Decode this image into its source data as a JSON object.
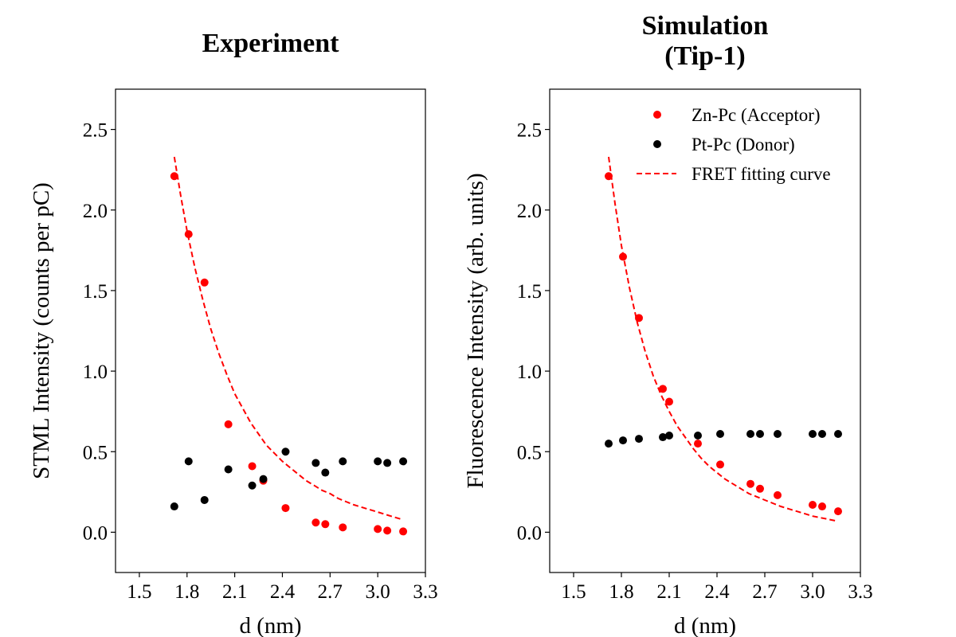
{
  "chart_data": [
    {
      "type": "scatter",
      "title_lines": [
        "Experiment"
      ],
      "xlabel": "d (nm)",
      "ylabel": "STML Intensity (counts per pC)",
      "xlim": [
        1.35,
        3.3
      ],
      "ylim": [
        -0.25,
        2.75
      ],
      "xticks": [
        "1.5",
        "1.8",
        "2.1",
        "2.4",
        "2.7",
        "3.0",
        "3.3"
      ],
      "yticks": [
        "0.0",
        "0.5",
        "1.0",
        "1.5",
        "2.0",
        "2.5"
      ],
      "grid": false,
      "legend": null,
      "series": [
        {
          "kind": "points",
          "color": "#ff0000",
          "x": [
            1.72,
            1.81,
            1.91,
            2.06,
            2.21,
            2.28,
            2.42,
            2.61,
            2.67,
            2.78,
            3.0,
            3.06,
            3.16
          ],
          "y": [
            2.21,
            1.85,
            1.55,
            0.67,
            0.41,
            0.32,
            0.15,
            0.06,
            0.05,
            0.03,
            0.02,
            0.01,
            0.005
          ]
        },
        {
          "kind": "points",
          "color": "#000000",
          "x": [
            1.72,
            1.81,
            1.91,
            2.06,
            2.21,
            2.28,
            2.42,
            2.61,
            2.67,
            2.78,
            3.0,
            3.06,
            3.16
          ],
          "y": [
            0.16,
            0.44,
            0.2,
            0.39,
            0.29,
            0.33,
            0.5,
            0.43,
            0.37,
            0.44,
            0.44,
            0.43,
            0.44
          ]
        },
        {
          "kind": "line",
          "dashed": true,
          "color": "#ff0000",
          "x": [
            1.72,
            1.76,
            1.8,
            1.85,
            1.9,
            1.95,
            2.0,
            2.05,
            2.1,
            2.15,
            2.2,
            2.25,
            2.3,
            2.35,
            2.4,
            2.45,
            2.5,
            2.55,
            2.6,
            2.65,
            2.7,
            2.75,
            2.8,
            2.85,
            2.9,
            2.95,
            3.0,
            3.05,
            3.1,
            3.15
          ],
          "y": [
            2.33,
            2.09,
            1.87,
            1.64,
            1.44,
            1.26,
            1.11,
            0.98,
            0.86,
            0.77,
            0.68,
            0.61,
            0.54,
            0.49,
            0.44,
            0.4,
            0.36,
            0.32,
            0.29,
            0.26,
            0.24,
            0.21,
            0.19,
            0.17,
            0.155,
            0.14,
            0.125,
            0.11,
            0.095,
            0.08
          ]
        }
      ]
    },
    {
      "type": "scatter",
      "title_lines": [
        "Simulation",
        "(Tip-1)"
      ],
      "xlabel": "d (nm)",
      "ylabel": "Fluorescence Intensity (arb. units)",
      "xlim": [
        1.35,
        3.3
      ],
      "ylim": [
        -0.25,
        2.75
      ],
      "xticks": [
        "1.5",
        "1.8",
        "2.1",
        "2.4",
        "2.7",
        "3.0",
        "3.3"
      ],
      "yticks": [
        "0.0",
        "0.5",
        "1.0",
        "1.5",
        "2.0",
        "2.5"
      ],
      "grid": false,
      "legend": "top-right",
      "series": [
        {
          "name": "Zn-Pc (Acceptor)",
          "kind": "points",
          "color": "#ff0000",
          "x": [
            1.72,
            1.81,
            1.91,
            2.06,
            2.1,
            2.28,
            2.42,
            2.61,
            2.67,
            2.78,
            3.0,
            3.06,
            3.16
          ],
          "y": [
            2.21,
            1.71,
            1.33,
            0.89,
            0.81,
            0.55,
            0.42,
            0.3,
            0.27,
            0.23,
            0.17,
            0.16,
            0.13
          ]
        },
        {
          "name": "Pt-Pc (Donor)",
          "kind": "points",
          "color": "#000000",
          "x": [
            1.72,
            1.81,
            1.91,
            2.06,
            2.1,
            2.28,
            2.42,
            2.61,
            2.67,
            2.78,
            3.0,
            3.06,
            3.16
          ],
          "y": [
            0.55,
            0.57,
            0.58,
            0.59,
            0.6,
            0.6,
            0.61,
            0.61,
            0.61,
            0.61,
            0.61,
            0.61,
            0.61
          ]
        },
        {
          "name": "FRET fitting curve",
          "kind": "line",
          "dashed": true,
          "color": "#ff0000",
          "x": [
            1.72,
            1.76,
            1.8,
            1.85,
            1.9,
            1.95,
            2.0,
            2.05,
            2.1,
            2.15,
            2.2,
            2.25,
            2.3,
            2.35,
            2.4,
            2.45,
            2.5,
            2.55,
            2.6,
            2.65,
            2.7,
            2.75,
            2.8,
            2.85,
            2.9,
            2.95,
            3.0,
            3.05,
            3.1,
            3.15
          ],
          "y": [
            2.33,
            2.04,
            1.78,
            1.52,
            1.3,
            1.12,
            0.97,
            0.85,
            0.75,
            0.66,
            0.59,
            0.52,
            0.46,
            0.41,
            0.37,
            0.33,
            0.3,
            0.27,
            0.24,
            0.22,
            0.2,
            0.18,
            0.16,
            0.145,
            0.13,
            0.115,
            0.1,
            0.09,
            0.08,
            0.07
          ]
        }
      ]
    }
  ]
}
